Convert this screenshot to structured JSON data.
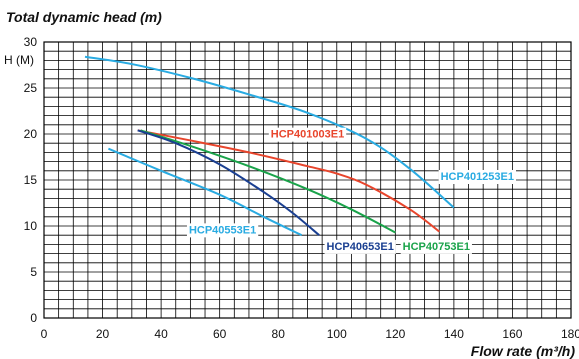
{
  "chart_data": {
    "type": "line",
    "title": "Total dynamic head (m)",
    "ylabel_unit": "H (M)",
    "xlabel": "Flow rate (m³/h)",
    "xlim": [
      0,
      180
    ],
    "ylim": [
      0,
      30
    ],
    "x_ticks": [
      "0",
      "20",
      "40",
      "60",
      "80",
      "100",
      "120",
      "140",
      "160",
      "180"
    ],
    "y_ticks": [
      "0",
      "5",
      "10",
      "15",
      "20",
      "25",
      "30"
    ],
    "grid": true,
    "series": [
      {
        "name": "HCP401253E1",
        "color": "#29abe2",
        "points": [
          [
            14,
            28.4
          ],
          [
            30,
            27.6
          ],
          [
            50,
            26.1
          ],
          [
            70,
            24.3
          ],
          [
            90,
            22.3
          ],
          [
            110,
            19.5
          ],
          [
            125,
            16.2
          ],
          [
            140,
            12.0
          ]
        ]
      },
      {
        "name": "HCP401003E1",
        "color": "#e8452c",
        "points": [
          [
            32,
            20.4
          ],
          [
            50,
            19.3
          ],
          [
            70,
            18.0
          ],
          [
            90,
            16.5
          ],
          [
            100,
            15.7
          ],
          [
            110,
            14.5
          ],
          [
            125,
            11.8
          ],
          [
            135,
            9.4
          ]
        ]
      },
      {
        "name": "HCP40753E1",
        "color": "#1aa34a",
        "points": [
          [
            33,
            20.4
          ],
          [
            50,
            18.7
          ],
          [
            70,
            16.5
          ],
          [
            90,
            14.0
          ],
          [
            105,
            11.8
          ],
          [
            120,
            9.3
          ]
        ]
      },
      {
        "name": "HCP40653E1",
        "color": "#1a3f91",
        "points": [
          [
            32,
            20.4
          ],
          [
            45,
            19.0
          ],
          [
            60,
            16.7
          ],
          [
            75,
            13.7
          ],
          [
            85,
            11.4
          ],
          [
            94,
            9.0
          ]
        ]
      },
      {
        "name": "HCP40553E1",
        "color": "#29abe2",
        "points": [
          [
            22,
            18.4
          ],
          [
            40,
            16.0
          ],
          [
            60,
            13.4
          ],
          [
            75,
            11.0
          ],
          [
            88,
            9.0
          ]
        ]
      }
    ]
  },
  "colors": {
    "grid": "#000000",
    "text": "#111111"
  }
}
